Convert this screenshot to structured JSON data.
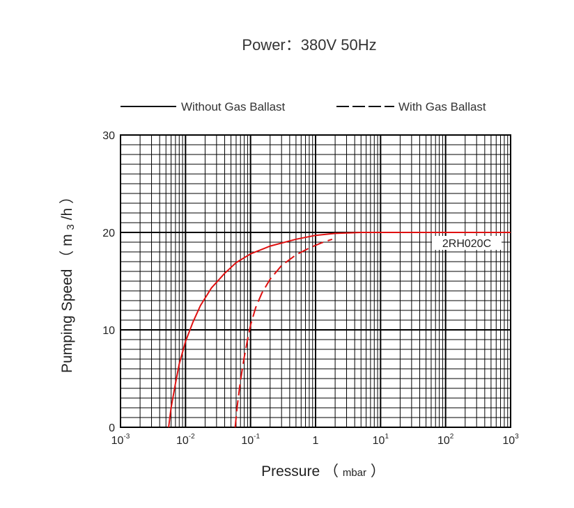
{
  "chart_data": {
    "type": "line",
    "title": "Power：380V 50Hz",
    "xlabel_main": "Pressure",
    "xlabel_unit": "mbar",
    "ylabel": "Pumping Speed（m3/h）",
    "ylabel_main": "Pumping Speed",
    "ylabel_unit_pre": "m",
    "ylabel_unit_sub": "3",
    "ylabel_unit_post": "/h",
    "xscale": "log",
    "xlim": [
      0.001,
      1000
    ],
    "ylim": [
      0,
      30
    ],
    "grid": true,
    "legend_position": "top",
    "x_ticks": [
      {
        "base": "10",
        "exp": "-3"
      },
      {
        "base": "10",
        "exp": "-2"
      },
      {
        "base": "10",
        "exp": "-1"
      },
      {
        "base": "1",
        "exp": ""
      },
      {
        "base": "10",
        "exp": "1"
      },
      {
        "base": "10",
        "exp": "2"
      },
      {
        "base": "10",
        "exp": "3"
      }
    ],
    "y_ticks": [
      "0",
      "10",
      "20",
      "30"
    ],
    "legend": [
      {
        "label": "Without Gas Ballast",
        "style": "solid"
      },
      {
        "label": "With Gas Ballast",
        "style": "dashed"
      }
    ],
    "annotation": "2RH020C",
    "series": [
      {
        "style": "solid",
        "color": "#e01010",
        "x": [
          0.0055,
          0.006,
          0.007,
          0.008,
          0.01,
          0.013,
          0.017,
          0.025,
          0.04,
          0.06,
          0.1,
          0.2,
          0.5,
          1,
          2,
          5,
          10,
          100,
          1000
        ],
        "y": [
          0,
          2,
          4.5,
          6.5,
          8.8,
          10.8,
          12.5,
          14.3,
          15.8,
          16.9,
          17.8,
          18.6,
          19.3,
          19.7,
          19.9,
          20,
          20,
          20,
          20
        ]
      },
      {
        "style": "dashed",
        "color": "#e01010",
        "x": [
          0.058,
          0.062,
          0.07,
          0.08,
          0.09,
          0.1,
          0.12,
          0.15,
          0.2,
          0.3,
          0.5,
          0.8,
          1.2,
          1.8
        ],
        "y": [
          0,
          2,
          4.8,
          7.2,
          9.0,
          10.5,
          12.3,
          13.8,
          15.2,
          16.6,
          17.7,
          18.4,
          18.9,
          19.3
        ]
      }
    ]
  }
}
